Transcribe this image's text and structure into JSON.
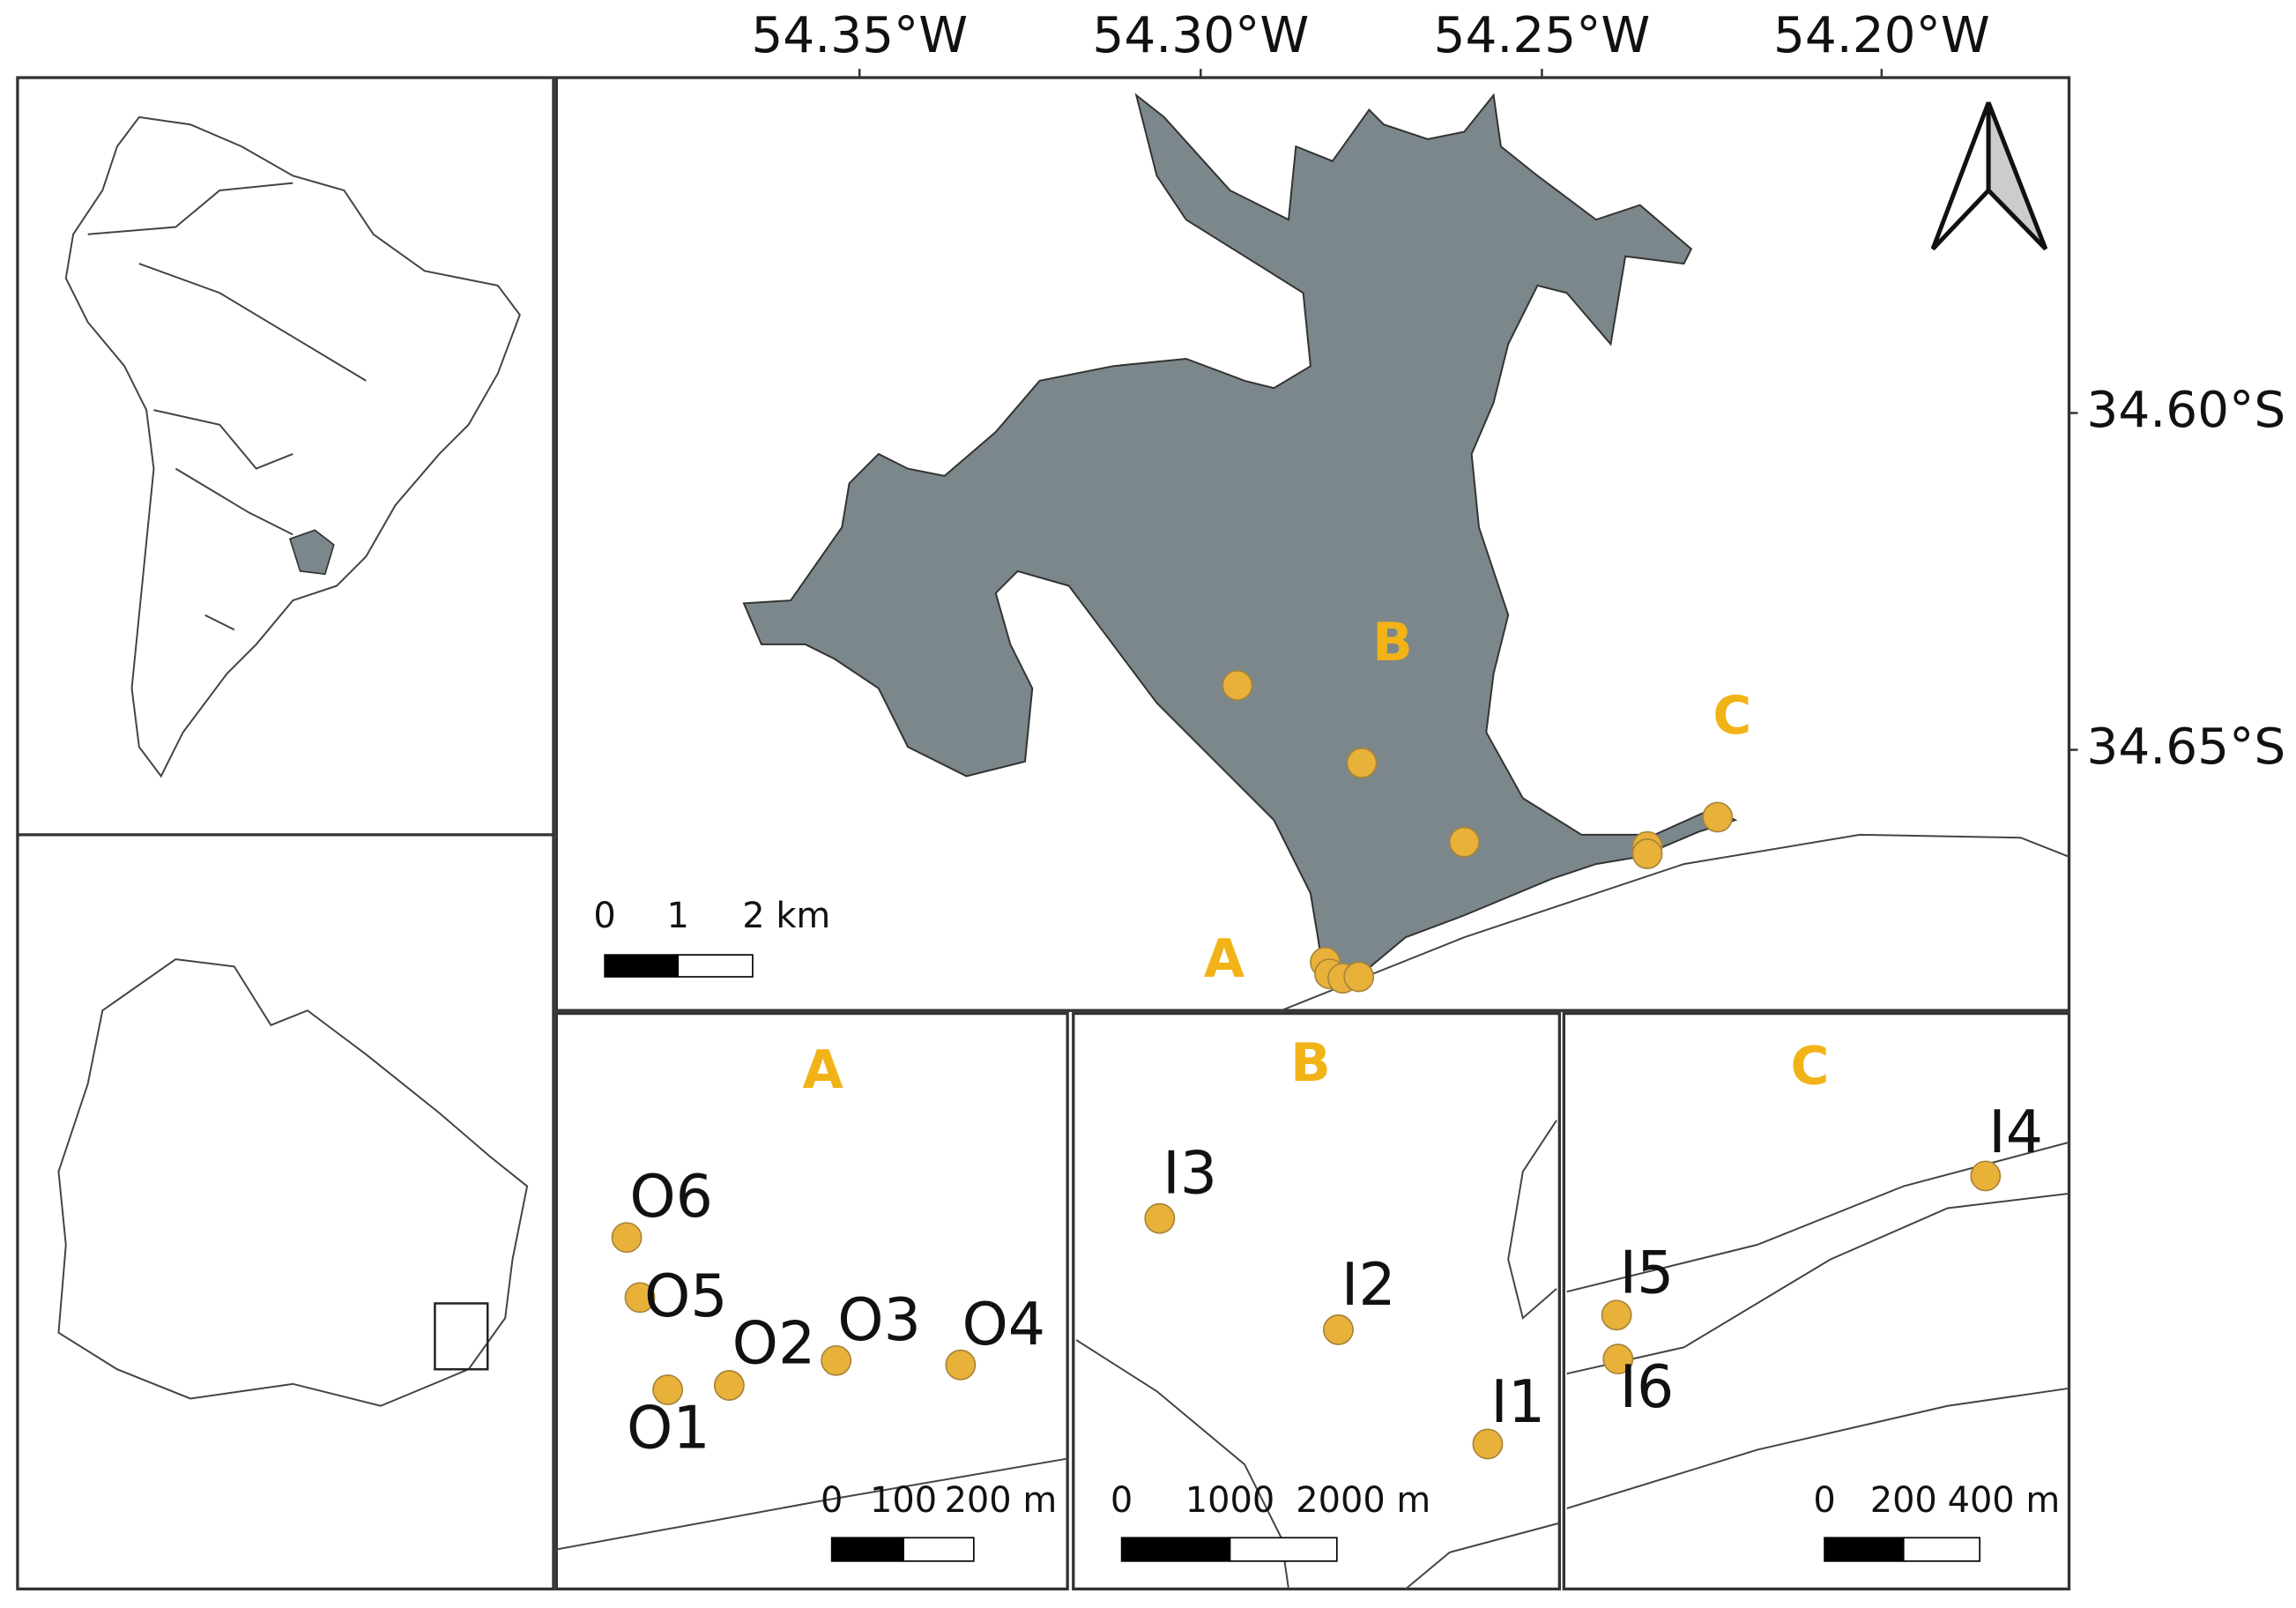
{
  "map": {
    "lon_labels": [
      "54.35°W",
      "54.30°W",
      "54.25°W",
      "54.20°W"
    ],
    "lat_labels": [
      "34.60°S",
      "34.65°S"
    ],
    "main": {
      "zone_labels": [
        "A",
        "B",
        "C"
      ],
      "scale_labels": [
        "0",
        "1",
        "2 km"
      ]
    },
    "insets": [
      {
        "title": "A",
        "sites": [
          "O1",
          "O2",
          "O3",
          "O4",
          "O5",
          "O6"
        ],
        "scale_labels": [
          "0",
          "100",
          "200 m"
        ]
      },
      {
        "title": "B",
        "sites": [
          "I1",
          "I2",
          "I3"
        ],
        "scale_labels": [
          "0",
          "1000",
          "2000 m"
        ]
      },
      {
        "title": "C",
        "sites": [
          "I4",
          "I5",
          "I6"
        ],
        "scale_labels": [
          "0",
          "200",
          "400 m"
        ]
      }
    ]
  }
}
